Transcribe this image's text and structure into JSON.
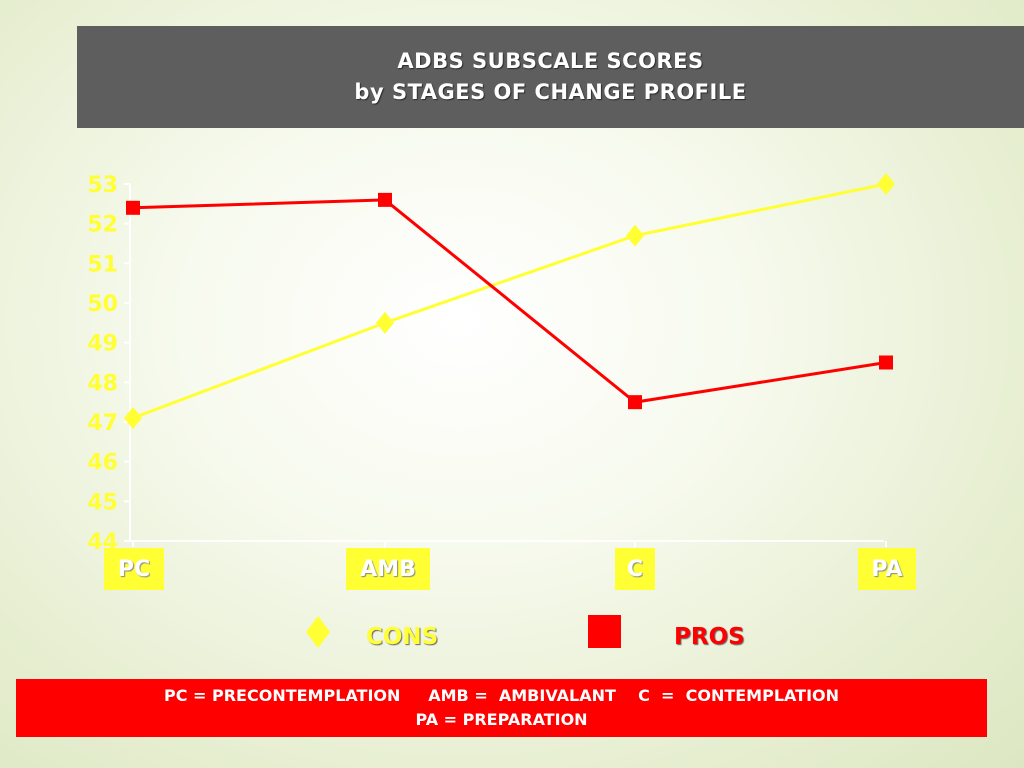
{
  "header": {
    "title_line1": "ADBS  SUBSCALE  SCORES",
    "title_line2": "by  STAGES  OF  CHANGE  PROFILE"
  },
  "chart_data": {
    "type": "line",
    "categories": [
      "PC",
      "AMB",
      "C",
      "PA"
    ],
    "yticks": [
      "44",
      "45",
      "46",
      "47",
      "48",
      "49",
      "50",
      "51",
      "52",
      "53"
    ],
    "ylim": [
      44,
      53
    ],
    "series": [
      {
        "name": "CONS",
        "values": [
          47.1,
          49.5,
          51.7,
          53.0
        ],
        "color": "#ffff33",
        "marker": "diamond"
      },
      {
        "name": "PROS",
        "values": [
          52.4,
          52.6,
          47.5,
          48.5
        ],
        "color": "#ff0000",
        "marker": "square"
      }
    ],
    "legend_position": "bottom",
    "grid": false
  },
  "colors": {
    "axis": "#ffffff",
    "label_box": "#ffff33",
    "footer_bg": "#ff0000",
    "header_bg": "#5e5e5e"
  },
  "footer": {
    "line1": "PC = PRECONTEMPLATION     AMB =  AMBIVALANT    C  =  CONTEMPLATION",
    "line2": "PA  =  PREPARATION"
  }
}
